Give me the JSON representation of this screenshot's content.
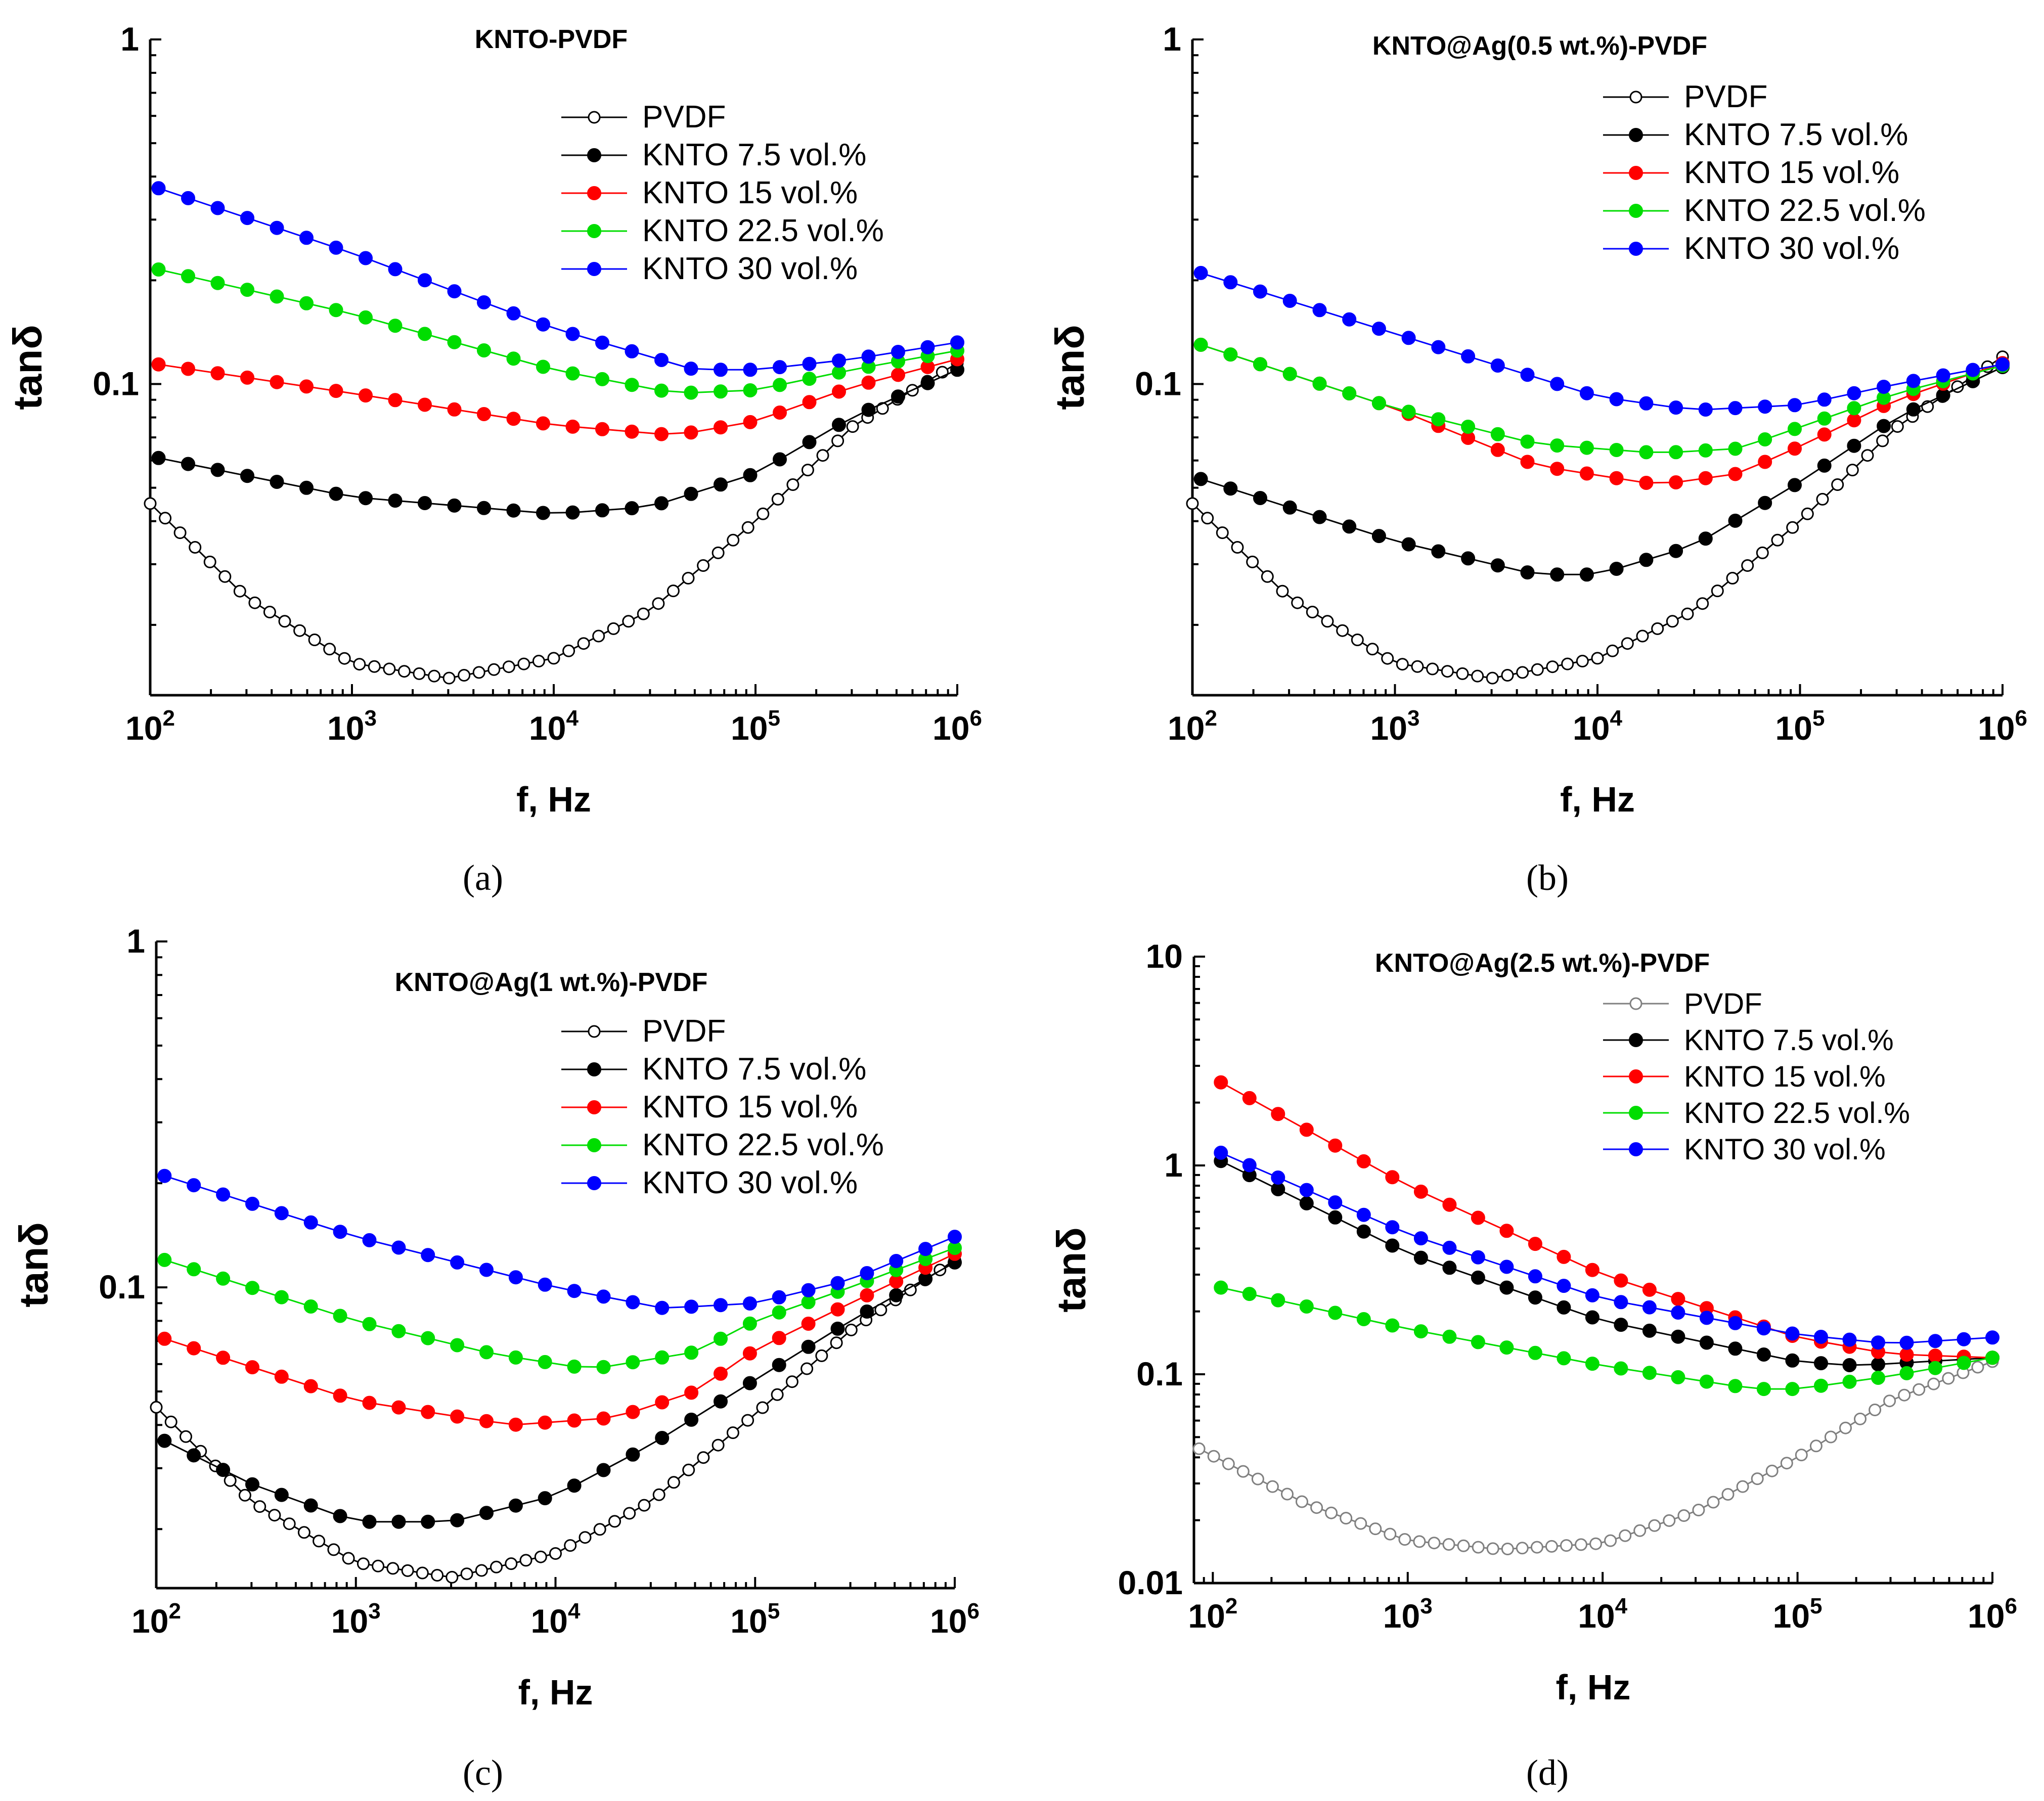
{
  "figure_captions": [
    "(a)",
    "(b)",
    "(c)",
    "(d)"
  ],
  "colors": {
    "PVDF": "#000000",
    "PVDF_light": "#808080",
    "KNTO 7.5 vol.%": "#000000",
    "KNTO 15 vol.%": "#ff0000",
    "KNTO 22.5 vol.%": "#00dd00",
    "KNTO 30 vol.%": "#0000ff"
  },
  "chart_data": [
    {
      "type": "line",
      "panel": "a",
      "title": "KNTO-PVDF",
      "xlabel": "f, Hz",
      "ylabel": "tanδ",
      "xscale": "log",
      "yscale": "log",
      "xlim": [
        100,
        1000000
      ],
      "ylim": [
        0.0125,
        1
      ],
      "xticks": [
        100,
        1000,
        10000,
        100000,
        1000000
      ],
      "yticks": [
        {
          "value": 1,
          "label": "1"
        },
        {
          "value": 0.1,
          "label": "0.1"
        }
      ],
      "legend_position": "top-right",
      "series": [
        {
          "name": "PVDF",
          "marker": "open-circle",
          "n": 55,
          "x": [
            100,
            300,
            1000,
            3000,
            10000,
            30000,
            100000,
            300000,
            1000000
          ],
          "y": [
            0.045,
            0.024,
            0.0155,
            0.014,
            0.016,
            0.022,
            0.04,
            0.075,
            0.115
          ]
        },
        {
          "name": "KNTO 7.5 vol.%",
          "marker": "filled-circle",
          "n": 28,
          "x": [
            110,
            1000,
            10000,
            30000,
            100000,
            300000,
            1000000
          ],
          "y": [
            0.061,
            0.047,
            0.042,
            0.044,
            0.055,
            0.08,
            0.11
          ]
        },
        {
          "name": "KNTO 15 vol.%",
          "marker": "filled-circle",
          "n": 28,
          "x": [
            110,
            1000,
            10000,
            40000,
            100000,
            300000,
            1000000
          ],
          "y": [
            0.114,
            0.094,
            0.076,
            0.071,
            0.078,
            0.098,
            0.118
          ]
        },
        {
          "name": "KNTO 22.5 vol.%",
          "marker": "filled-circle",
          "n": 28,
          "x": [
            110,
            1000,
            10000,
            40000,
            100000,
            300000,
            1000000
          ],
          "y": [
            0.215,
            0.16,
            0.11,
            0.094,
            0.096,
            0.11,
            0.125
          ]
        },
        {
          "name": "KNTO 30 vol.%",
          "marker": "filled-circle",
          "n": 28,
          "x": [
            110,
            1000,
            10000,
            50000,
            100000,
            300000,
            1000000
          ],
          "y": [
            0.37,
            0.24,
            0.145,
            0.11,
            0.11,
            0.118,
            0.132
          ]
        }
      ]
    },
    {
      "type": "line",
      "panel": "b",
      "title": "KNTO@Ag(0.5 wt.%)-PVDF",
      "xlabel": "f, Hz",
      "ylabel": "tanδ",
      "xscale": "log",
      "yscale": "log",
      "xlim": [
        100,
        1000000
      ],
      "ylim": [
        0.0125,
        1
      ],
      "xticks": [
        100,
        1000,
        10000,
        100000,
        1000000
      ],
      "yticks": [
        {
          "value": 1,
          "label": "1"
        },
        {
          "value": 0.1,
          "label": "0.1"
        }
      ],
      "legend_position": "top-right",
      "series": [
        {
          "name": "PVDF",
          "marker": "open-circle",
          "n": 55,
          "x": [
            100,
            300,
            1000,
            3000,
            10000,
            30000,
            100000,
            300000,
            1000000
          ],
          "y": [
            0.045,
            0.024,
            0.0155,
            0.014,
            0.016,
            0.022,
            0.04,
            0.075,
            0.12
          ]
        },
        {
          "name": "KNTO 7.5 vol.%",
          "marker": "filled-circle",
          "n": 28,
          "x": [
            110,
            1000,
            5000,
            10000,
            30000,
            100000,
            300000,
            1000000
          ],
          "y": [
            0.053,
            0.035,
            0.028,
            0.028,
            0.034,
            0.052,
            0.08,
            0.112
          ]
        },
        {
          "name": "KNTO 15 vol.%",
          "marker": "filled-circle",
          "n": 28,
          "x": [
            110,
            1000,
            5000,
            20000,
            50000,
            100000,
            300000,
            1000000
          ],
          "y": [
            0.13,
            0.085,
            0.058,
            0.051,
            0.055,
            0.066,
            0.09,
            0.115
          ]
        },
        {
          "name": "KNTO 22.5 vol.%",
          "marker": "filled-circle",
          "n": 28,
          "x": [
            110,
            1000,
            5000,
            20000,
            50000,
            100000,
            300000,
            1000000
          ],
          "y": [
            0.13,
            0.085,
            0.067,
            0.063,
            0.065,
            0.075,
            0.094,
            0.113
          ]
        },
        {
          "name": "KNTO 30 vol.%",
          "marker": "filled-circle",
          "n": 28,
          "x": [
            110,
            1000,
            10000,
            30000,
            100000,
            300000,
            1000000
          ],
          "y": [
            0.21,
            0.14,
            0.092,
            0.084,
            0.087,
            0.1,
            0.114
          ]
        }
      ]
    },
    {
      "type": "line",
      "panel": "c",
      "title": "KNTO@Ag(1 wt.%)-PVDF",
      "xlabel": "f, Hz",
      "ylabel": "tanδ",
      "xscale": "log",
      "yscale": "log",
      "xlim": [
        100,
        1000000
      ],
      "ylim": [
        0.0135,
        1
      ],
      "xticks": [
        100,
        1000,
        10000,
        100000,
        1000000
      ],
      "yticks": [
        {
          "value": 1,
          "label": "1"
        },
        {
          "value": 0.1,
          "label": "0.1"
        }
      ],
      "legend_position": "top-right",
      "series": [
        {
          "name": "PVDF",
          "marker": "open-circle",
          "n": 55,
          "x": [
            100,
            300,
            1000,
            3000,
            10000,
            30000,
            100000,
            300000,
            1000000
          ],
          "y": [
            0.045,
            0.024,
            0.016,
            0.0145,
            0.017,
            0.024,
            0.043,
            0.075,
            0.12
          ]
        },
        {
          "name": "KNTO 7.5 vol.%",
          "marker": "filled-circle",
          "n": 28,
          "x": [
            110,
            300,
            1000,
            3000,
            10000,
            30000,
            100000,
            300000,
            1000000
          ],
          "y": [
            0.036,
            0.027,
            0.021,
            0.021,
            0.025,
            0.035,
            0.054,
            0.08,
            0.118
          ]
        },
        {
          "name": "KNTO 15 vol.%",
          "marker": "filled-circle",
          "n": 28,
          "x": [
            110,
            1000,
            6000,
            20000,
            50000,
            100000,
            300000,
            1000000
          ],
          "y": [
            0.071,
            0.047,
            0.04,
            0.042,
            0.05,
            0.066,
            0.09,
            0.125
          ]
        },
        {
          "name": "KNTO 22.5 vol.%",
          "marker": "filled-circle",
          "n": 28,
          "x": [
            110,
            1000,
            5000,
            15000,
            50000,
            100000,
            300000,
            1000000
          ],
          "y": [
            0.12,
            0.08,
            0.064,
            0.058,
            0.065,
            0.08,
            0.1,
            0.13
          ]
        },
        {
          "name": "KNTO 30 vol.%",
          "marker": "filled-circle",
          "n": 28,
          "x": [
            110,
            1000,
            10000,
            35000,
            100000,
            300000,
            1000000
          ],
          "y": [
            0.21,
            0.14,
            0.1,
            0.087,
            0.09,
            0.105,
            0.14
          ]
        }
      ]
    },
    {
      "type": "line",
      "panel": "d",
      "title": "KNTO@Ag(2.5 wt.%)-PVDF",
      "xlabel": "f, Hz",
      "ylabel": "tanδ",
      "xscale": "log",
      "yscale": "log",
      "xlim": [
        80,
        1000000
      ],
      "ylim": [
        0.01,
        10
      ],
      "xticks": [
        100,
        1000,
        10000,
        100000,
        1000000
      ],
      "yticks": [
        {
          "value": 10,
          "label": "10"
        },
        {
          "value": 1,
          "label": "1"
        },
        {
          "value": 0.1,
          "label": "0.1"
        },
        {
          "value": 0.01,
          "label": "0.01"
        }
      ],
      "legend_position": "top-right",
      "series": [
        {
          "name": "PVDF",
          "marker": "open-circle-gray",
          "n": 55,
          "x": [
            85,
            300,
            1000,
            3000,
            10000,
            30000,
            100000,
            300000,
            1000000
          ],
          "y": [
            0.044,
            0.024,
            0.016,
            0.0145,
            0.0155,
            0.022,
            0.04,
            0.075,
            0.115
          ]
        },
        {
          "name": "KNTO 7.5 vol.%",
          "marker": "filled-circle",
          "n": 28,
          "x": [
            110,
            1000,
            10000,
            100000,
            200000,
            1000000
          ],
          "y": [
            1.05,
            0.38,
            0.18,
            0.115,
            0.11,
            0.12
          ]
        },
        {
          "name": "KNTO 15 vol.%",
          "marker": "filled-circle",
          "n": 28,
          "x": [
            110,
            1000,
            10000,
            100000,
            300000,
            1000000
          ],
          "y": [
            2.5,
            0.8,
            0.3,
            0.15,
            0.125,
            0.12
          ]
        },
        {
          "name": "KNTO 22.5 vol.%",
          "marker": "filled-circle",
          "n": 28,
          "x": [
            110,
            1000,
            10000,
            60000,
            100000,
            300000,
            1000000
          ],
          "y": [
            0.26,
            0.165,
            0.11,
            0.085,
            0.085,
            0.098,
            0.12
          ]
        },
        {
          "name": "KNTO 30 vol.%",
          "marker": "filled-circle",
          "n": 28,
          "x": [
            110,
            1000,
            10000,
            100000,
            300000,
            1000000
          ],
          "y": [
            1.15,
            0.47,
            0.23,
            0.155,
            0.14,
            0.15
          ]
        }
      ]
    }
  ]
}
